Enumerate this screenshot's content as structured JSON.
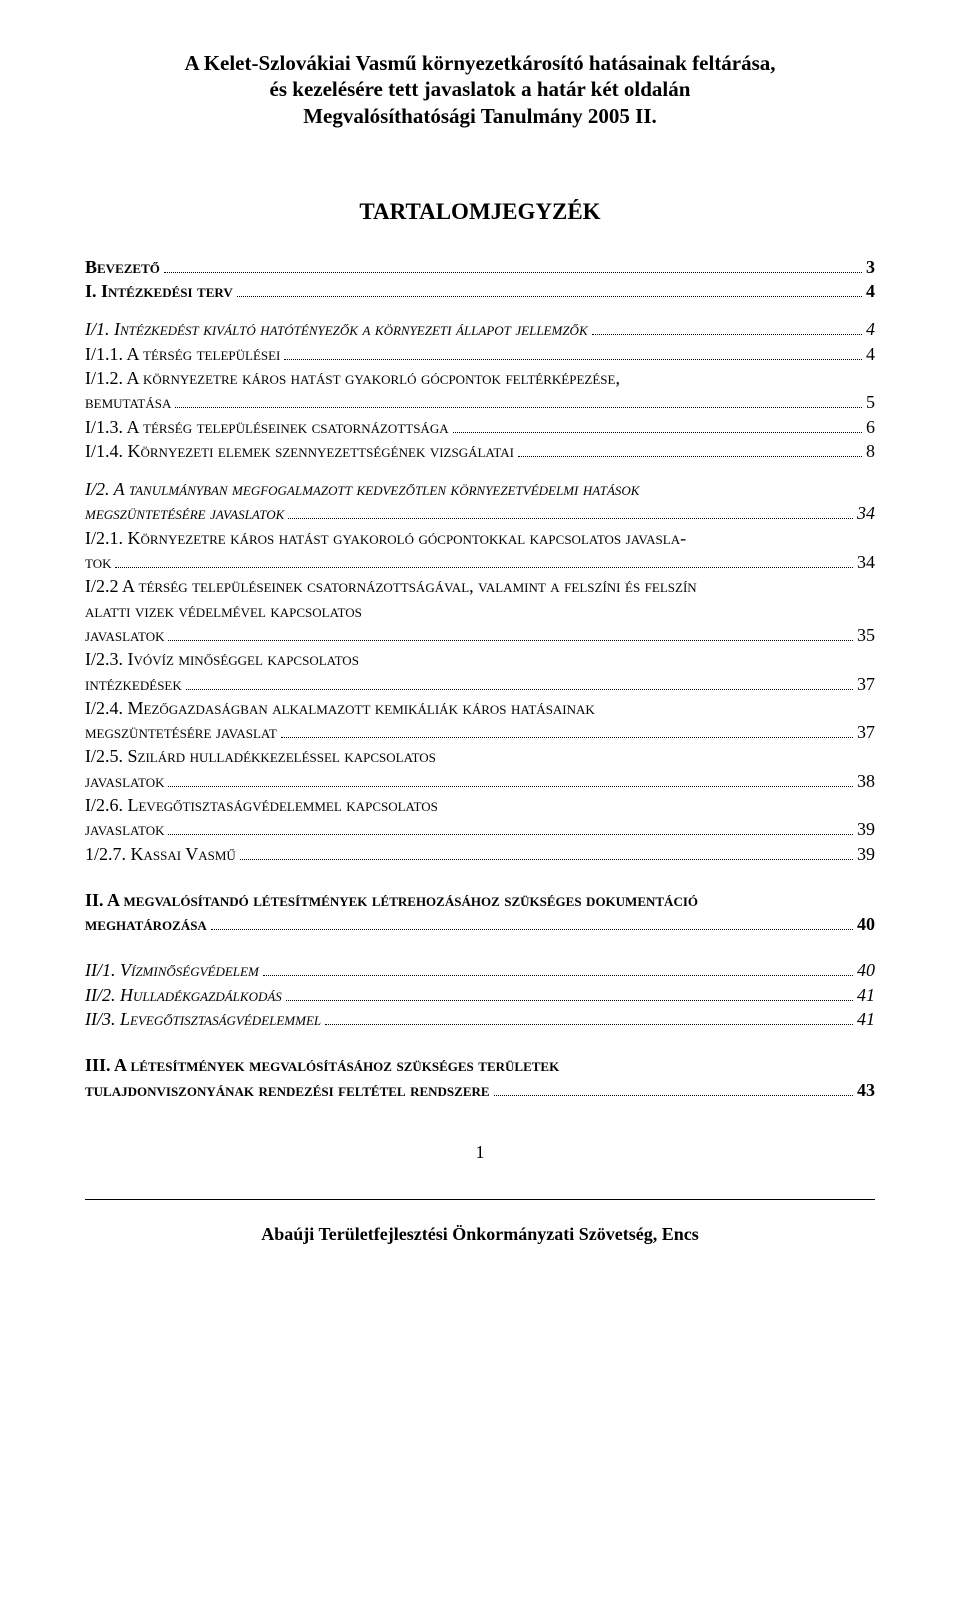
{
  "header": {
    "line1": "A Kelet-Szlovákiai Vasmű környezetkárosító hatásainak feltárása,",
    "line2": "és kezelésére tett javaslatok a határ két oldalán",
    "line3": "Megvalósíthatósági Tanulmány 2005 II."
  },
  "toc_title": "TARTALOMJEGYZÉK",
  "entries": {
    "bevezeto": {
      "label": "Bevezető",
      "page": "3"
    },
    "intezkedesi_terv": {
      "label": "I. Intézkedési terv",
      "page": "4"
    },
    "i1": {
      "label": "I/1. Intézkedést kiváltó hatótényezők a környezeti állapot jellemzők",
      "page": "4"
    },
    "i11": {
      "label": "I/1.1. A térség települései",
      "page": "4"
    },
    "i12_a": "I/1.2. A környezetre káros hatást gyakorló gócpontok feltérképezése,",
    "i12_b": {
      "label": "bemutatása",
      "page": "5"
    },
    "i13": {
      "label": "I/1.3. A térség településeinek csatornázottsága",
      "page": "6"
    },
    "i14": {
      "label": "I/1.4. Környezeti elemek szennyezettségének vizsgálatai",
      "page": "8"
    },
    "i2_a": "I/2. A tanulmányban megfogalmazott kedvezőtlen környezetvédelmi hatások",
    "i2_b": {
      "label": "megszüntetésére javaslatok",
      "page": "34"
    },
    "i21_a": "I/2.1. Környezetre káros hatást gyakoroló gócpontokkal kapcsolatos javasla-",
    "i21_b": {
      "label": "tok",
      "page": "34"
    },
    "i22_a": "I/2.2 A térség településeinek csatornázottságával, valamint a felszíni és felszín",
    "i22_b": "alatti vizek védelmével kapcsolatos",
    "i22_c": {
      "label": "javaslatok",
      "page": "35"
    },
    "i23_a": "I/2.3. Ivóvíz minőséggel kapcsolatos",
    "i23_b": {
      "label": "intézkedések",
      "page": "37"
    },
    "i24_a": "I/2.4. Mezőgazdaságban alkalmazott  kemikáliák káros hatásainak",
    "i24_b": {
      "label": "megszüntetésére javaslat",
      "page": "37"
    },
    "i25_a": "I/2.5. Szilárd hulladékkezeléssel kapcsolatos",
    "i25_b": {
      "label": "javaslatok",
      "page": "38"
    },
    "i26_a": "I/2.6. Levegőtisztaságvédelemmel kapcsolatos",
    "i26_b": {
      "label": "javaslatok",
      "page": "39"
    },
    "i27": {
      "label": "1/2.7. Kassai Vasmű",
      "page": "39"
    },
    "ii_a": "II. A megvalósítandó létesítmények létrehozásához szükséges dokumentáció",
    "ii_b": {
      "label": "meghatározása",
      "page": "40"
    },
    "ii1": {
      "label": "II/1. Vízminőségvédelem",
      "page": "40"
    },
    "ii2": {
      "label": "II/2. Hulladékgazdálkodás",
      "page": "41"
    },
    "ii3": {
      "label": "II/3. Levegőtisztaságvédelemmel",
      "page": "41"
    },
    "iii_a": "III. A létesítmények megvalósításához szükséges területek",
    "iii_b": {
      "label": "tulajdonviszonyának rendezési feltétel rendszere",
      "page": "43"
    }
  },
  "page_number": "1",
  "footer": "Abaúji Területfejlesztési Önkormányzati Szövetség, Encs"
}
